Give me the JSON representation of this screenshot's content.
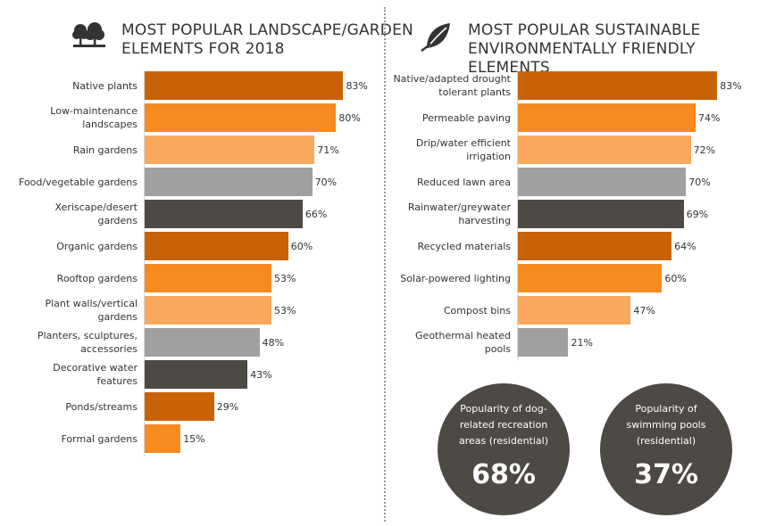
{
  "left_panel": {
    "title_line1": "MOST POPULAR LANDSCAPE/GARDEN",
    "title_line2": "ELEMENTS FOR 2018",
    "icon": "trees-icon"
  },
  "right_panel": {
    "title_line1": "MOST POPULAR SUSTAINABLE",
    "title_line2": "ENVIRONMENTALLY FRIENDLY ELEMENTS",
    "icon": "leaf-icon"
  },
  "colors": {
    "dark_orange": "#c96206",
    "orange": "#f68b1f",
    "light_orange": "#f8a95b",
    "gray": "#a0a0a0",
    "dark_gray": "#4d4945"
  },
  "chart_data": [
    {
      "type": "bar",
      "orientation": "horizontal",
      "title": "MOST POPULAR LANDSCAPE/GARDEN ELEMENTS FOR 2018",
      "categories": [
        "Native plants",
        "Low-maintenance landscapes",
        "Rain gardens",
        "Food/vegetable gardens",
        "Xeriscape/desert gardens",
        "Organic gardens",
        "Rooftop gardens",
        "Plant walls/vertical gardens",
        "Planters, sculptures, accessories",
        "Decorative water features",
        "Ponds/streams",
        "Formal gardens"
      ],
      "label_lines": [
        [
          "Native plants"
        ],
        [
          "Low-maintenance",
          "landscapes"
        ],
        [
          "Rain gardens"
        ],
        [
          "Food/vegetable gardens"
        ],
        [
          "Xeriscape/desert",
          "gardens"
        ],
        [
          "Organic gardens"
        ],
        [
          "Rooftop gardens"
        ],
        [
          "Plant walls/vertical",
          "gardens"
        ],
        [
          "Planters, sculptures,",
          "accessories"
        ],
        [
          "Decorative water",
          "features"
        ],
        [
          "Ponds/streams"
        ],
        [
          "Formal gardens"
        ]
      ],
      "values": [
        83,
        80,
        71,
        70,
        66,
        60,
        53,
        53,
        48,
        43,
        29,
        15
      ],
      "value_labels": [
        "83%",
        "80%",
        "71%",
        "70%",
        "66%",
        "60%",
        "53%",
        "53%",
        "48%",
        "43%",
        "29%",
        "15%"
      ],
      "bar_colors": [
        "#c96206",
        "#f68b1f",
        "#f8a95b",
        "#a0a0a0",
        "#4d4945",
        "#c96206",
        "#f68b1f",
        "#f8a95b",
        "#a0a0a0",
        "#4d4945",
        "#c96206",
        "#f68b1f"
      ],
      "xlim": [
        0,
        100
      ],
      "grid": false
    },
    {
      "type": "bar",
      "orientation": "horizontal",
      "title": "MOST POPULAR SUSTAINABLE ENVIRONMENTALLY FRIENDLY ELEMENTS",
      "categories": [
        "Native/adapted drought tolerant plants",
        "Permeable paving",
        "Drip/water efficient irrigation",
        "Reduced lawn area",
        "Rainwater/greywater harvesting",
        "Recycled materials",
        "Solar-powered lighting",
        "Compost bins",
        "Geothermal heated pools"
      ],
      "label_lines": [
        [
          "Native/adapted drought",
          "tolerant plants"
        ],
        [
          "Permeable paving"
        ],
        [
          "Drip/water efficient",
          "irrigation"
        ],
        [
          "Reduced lawn area"
        ],
        [
          "Rainwater/greywater",
          "harvesting"
        ],
        [
          "Recycled materials"
        ],
        [
          "Solar-powered lighting"
        ],
        [
          "Compost bins"
        ],
        [
          "Geothermal heated",
          "pools"
        ]
      ],
      "values": [
        83,
        74,
        72,
        70,
        69,
        64,
        60,
        47,
        21
      ],
      "value_labels": [
        "83%",
        "74%",
        "72%",
        "70%",
        "69%",
        "64%",
        "60%",
        "47%",
        "21%"
      ],
      "bar_colors": [
        "#c96206",
        "#f68b1f",
        "#f8a95b",
        "#a0a0a0",
        "#4d4945",
        "#c96206",
        "#f68b1f",
        "#f8a95b",
        "#a0a0a0"
      ],
      "xlim": [
        0,
        100
      ],
      "grid": false
    }
  ],
  "stats": [
    {
      "label_lines": [
        "Popularity of dog-",
        "related recreation",
        "areas (residential)"
      ],
      "value": "68%"
    },
    {
      "label_lines": [
        "Popularity of",
        "swimming pools",
        "(residential)"
      ],
      "value": "37%"
    }
  ]
}
